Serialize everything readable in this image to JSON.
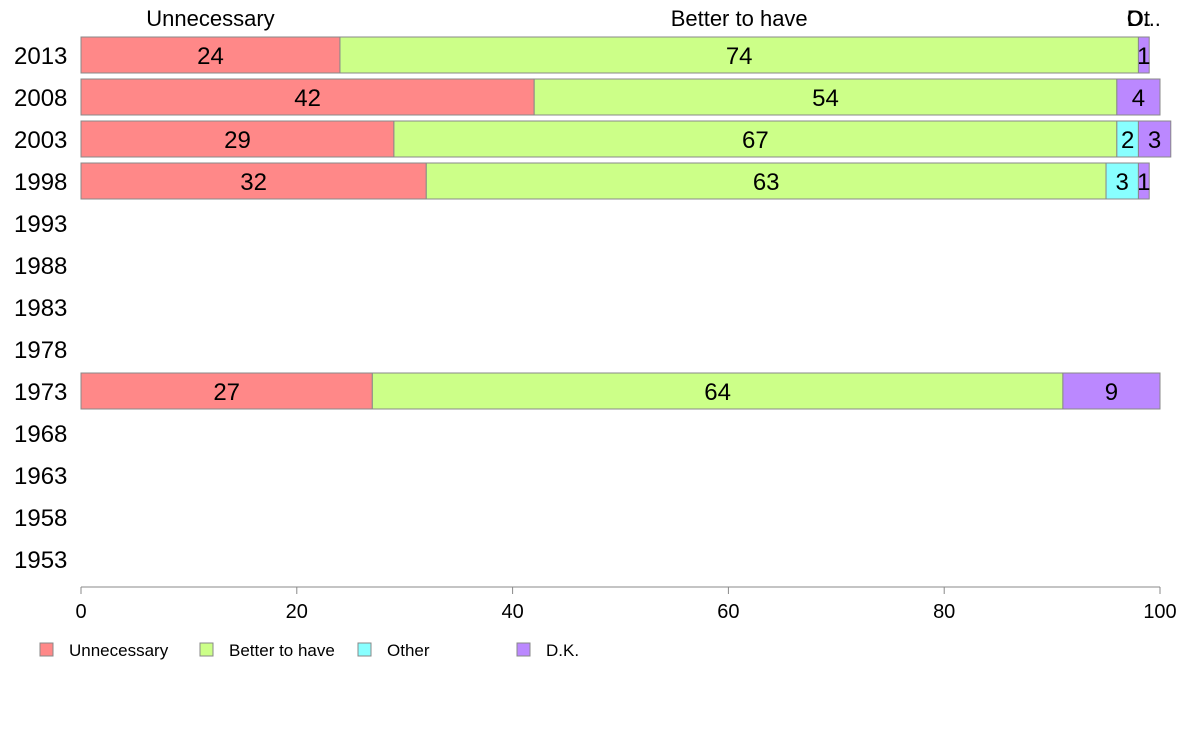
{
  "chart_data": {
    "type": "bar",
    "orientation": "horizontal",
    "stacked": true,
    "categories": [
      "2013",
      "2008",
      "2003",
      "1998",
      "1993",
      "1988",
      "1983",
      "1978",
      "1973",
      "1968",
      "1963",
      "1958",
      "1953"
    ],
    "series": [
      {
        "name": "Unnecessary",
        "color": "#FF8888",
        "values": [
          24,
          42,
          29,
          32,
          null,
          null,
          null,
          null,
          27,
          null,
          null,
          null,
          null
        ]
      },
      {
        "name": "Better to have",
        "color": "#CCFF88",
        "values": [
          74,
          54,
          67,
          63,
          null,
          null,
          null,
          null,
          64,
          null,
          null,
          null,
          null
        ]
      },
      {
        "name": "Other",
        "color": "#88FFFF",
        "values": [
          0,
          0,
          2,
          3,
          null,
          null,
          null,
          null,
          0,
          null,
          null,
          null,
          null
        ]
      },
      {
        "name": "D.K.",
        "color": "#BB88FF",
        "values": [
          1,
          4,
          3,
          1,
          null,
          null,
          null,
          null,
          9,
          null,
          null,
          null,
          null
        ]
      }
    ],
    "top_labels": [
      "Unnecessary",
      "Better to have",
      "Ot",
      "D..."
    ],
    "xlim": [
      0,
      100
    ],
    "x_ticks": [
      0,
      20,
      40,
      60,
      80,
      100
    ],
    "legend_position": "bottom-left",
    "grid": false
  }
}
